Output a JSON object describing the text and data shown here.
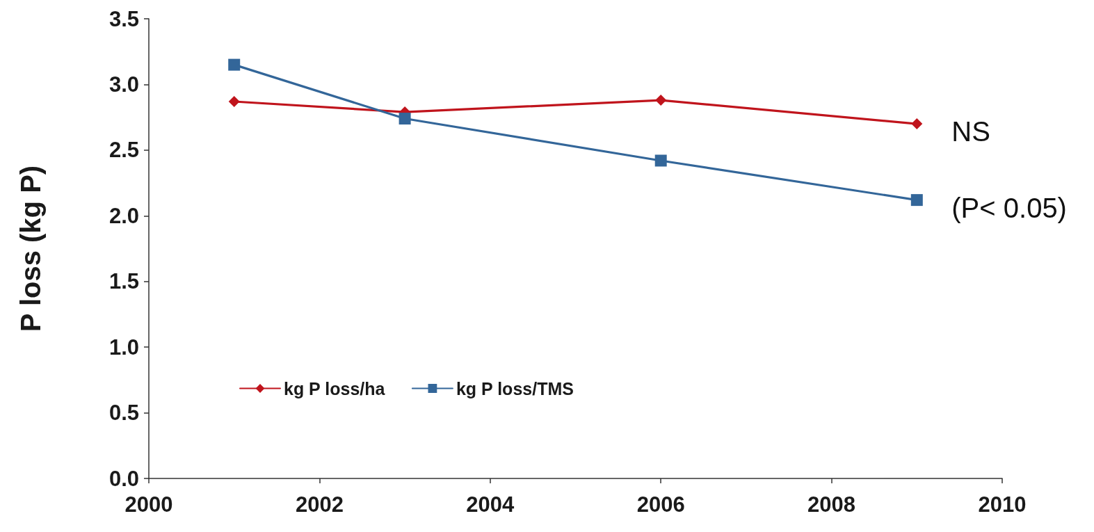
{
  "chart_data": {
    "type": "line",
    "ylabel": "P loss (kg P)",
    "x": [
      2001,
      2003,
      2006,
      2009
    ],
    "xlim": [
      2000,
      2010
    ],
    "xticks": [
      2000,
      2002,
      2004,
      2006,
      2008,
      2010
    ],
    "ylim": [
      0,
      3.5
    ],
    "yticks": [
      {
        "value": 0,
        "label": "0.0"
      },
      0.5,
      {
        "value": 1,
        "label": "1.0"
      },
      1.5,
      {
        "value": 2,
        "label": "2.0"
      },
      2.5,
      {
        "value": 3,
        "label": "3.0"
      },
      3.5
    ],
    "grid": false,
    "legend": "bottom left",
    "line_style": "solid",
    "series": [
      {
        "name": "kg P loss/ha",
        "color": "#c0141c",
        "marker": "diamond",
        "values": [
          2.87,
          2.79,
          2.88,
          2.7
        ]
      },
      {
        "name": "kg P loss/TMS",
        "color": "#336699",
        "marker": "square",
        "values": [
          3.15,
          2.74,
          2.42,
          2.12
        ]
      }
    ],
    "annotations": [
      {
        "text": "NS",
        "x": 2009,
        "y": 2.7
      },
      {
        "text": "(P< 0.05)",
        "x": 2009,
        "y": 2.12
      }
    ]
  }
}
